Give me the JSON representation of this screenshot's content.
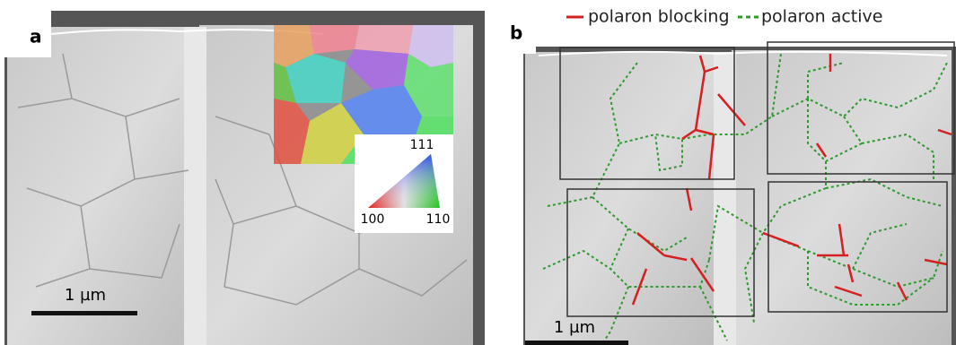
{
  "panels": [
    {
      "label": "a",
      "scale_bar": "1 µm",
      "inset": {
        "top": "111",
        "left": "100",
        "right": "110"
      }
    },
    {
      "label": "b",
      "scale_bar": "1 µm"
    }
  ],
  "legend": [
    {
      "label": "polaron blocking"
    },
    {
      "label": "polaron active"
    }
  ]
}
